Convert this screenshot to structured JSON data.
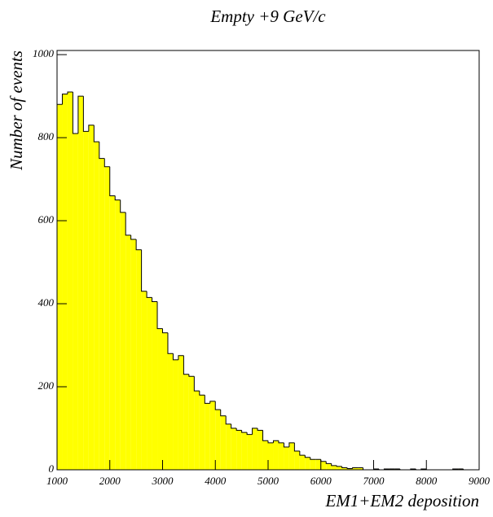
{
  "chart_data": {
    "type": "histogram",
    "title": "Empty +9 GeV/c",
    "xlabel": "EM1+EM2 deposition",
    "ylabel": "Number of events",
    "color": "#ffff00",
    "bins": [
      1000,
      1100,
      1200,
      1300,
      1400,
      1500,
      1600,
      1700,
      1800,
      1900,
      2000,
      2100,
      2200,
      2300,
      2400,
      2500,
      2600,
      2700,
      2800,
      2900,
      3000,
      3100,
      3200,
      3300,
      3400,
      3500,
      3600,
      3700,
      3800,
      3900,
      4000,
      4100,
      4200,
      4300,
      4400,
      4500,
      4600,
      4700,
      4800,
      4900,
      5000,
      5100,
      5200,
      5300,
      5400,
      5500,
      5600,
      5700,
      5800,
      5900,
      6000,
      6100,
      6200,
      6300,
      6400,
      6500,
      6600,
      6700,
      6800,
      6900,
      7000,
      7100,
      7200,
      7300,
      7400,
      7500,
      7600,
      7700,
      7800,
      7900,
      8000,
      8100,
      8200,
      8300,
      8400,
      8500,
      8600,
      8700,
      8800,
      8900,
      9000
    ],
    "counts": [
      880,
      905,
      910,
      810,
      900,
      815,
      830,
      790,
      750,
      730,
      660,
      650,
      620,
      565,
      555,
      530,
      430,
      415,
      405,
      340,
      330,
      280,
      265,
      275,
      230,
      225,
      190,
      180,
      160,
      165,
      145,
      130,
      110,
      100,
      95,
      90,
      85,
      100,
      95,
      70,
      65,
      70,
      65,
      55,
      65,
      45,
      35,
      30,
      25,
      25,
      20,
      15,
      10,
      8,
      5,
      3,
      5,
      5,
      0,
      0,
      2,
      0,
      2,
      2,
      2,
      0,
      0,
      2,
      0,
      2,
      0,
      0,
      0,
      0,
      0,
      2,
      2,
      0,
      0,
      0
    ],
    "xlim": [
      1000,
      9000
    ],
    "ylim": [
      0,
      1010
    ],
    "xticks": [
      1000,
      2000,
      3000,
      4000,
      5000,
      6000,
      7000,
      8000,
      9000
    ],
    "yticks": [
      0,
      200,
      400,
      600,
      800,
      1000
    ]
  }
}
